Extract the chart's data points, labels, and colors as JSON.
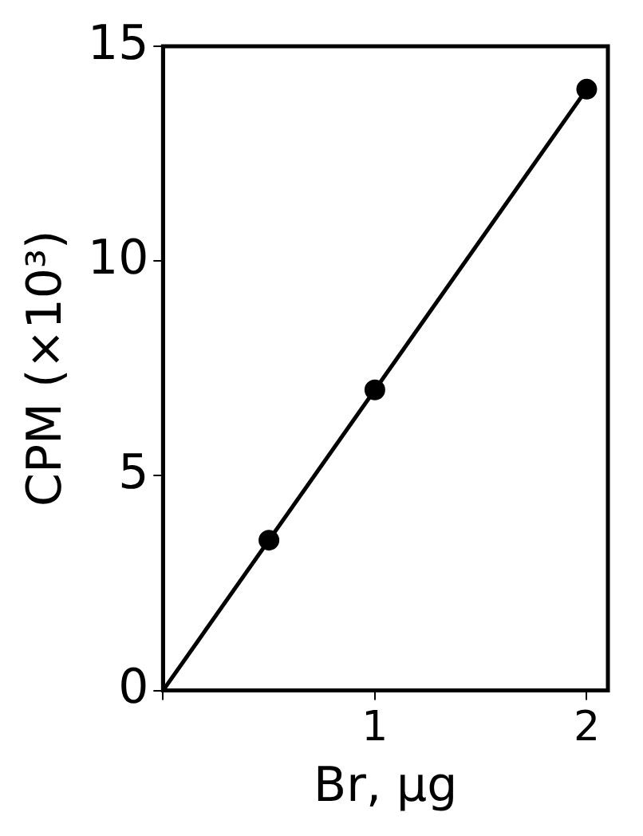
{
  "chart_data": {
    "type": "scatter",
    "xlabel": "Br, μg",
    "ylabel": "CPM (×10³)",
    "xlim": [
      0,
      2.1
    ],
    "ylim": [
      0,
      15
    ],
    "xticks": [
      {
        "value": 0,
        "label": null
      },
      1,
      2
    ],
    "yticks": [
      0,
      5,
      10,
      15
    ],
    "grid": false,
    "legend": false,
    "series": [
      {
        "type": "scatter",
        "color": "#000000",
        "x": [
          0.5,
          1,
          2
        ],
        "values": [
          3.5,
          7,
          14
        ],
        "marker": "circle"
      },
      {
        "type": "line",
        "color": "#000000",
        "x": [
          0,
          2
        ],
        "values": [
          0,
          14
        ],
        "marker": "none",
        "line_style": "solid"
      }
    ]
  }
}
